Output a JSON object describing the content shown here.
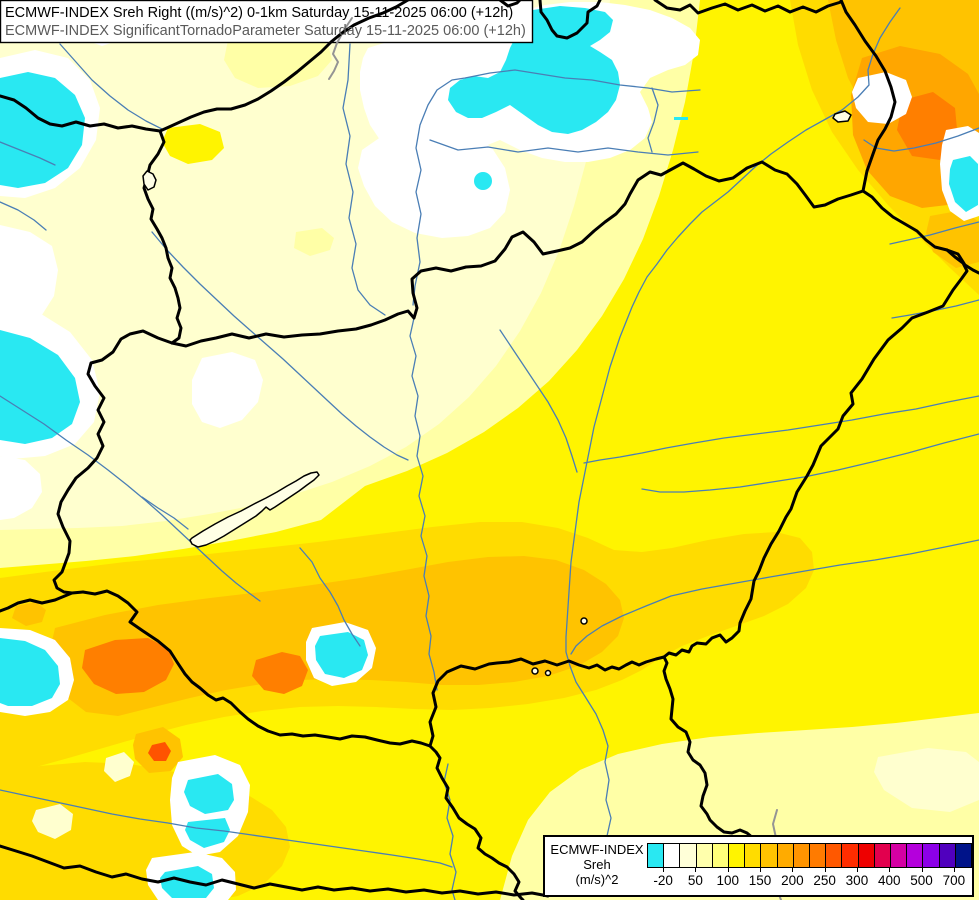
{
  "title_panel": {
    "line1": "ECMWF-INDEX Sreh Right ((m/s)^2) 0-1km Saturday 15-11-2025 06:00 (+12h)",
    "line2": "ECMWF-INDEX SignificantTornadoParameter Saturday 15-11-2025 06:00 (+12h)"
  },
  "legend": {
    "source_label": "ECMWF-INDEX",
    "parameter_label": "Sreh",
    "units_label": "(m/s)^2",
    "tick_labels": [
      "-20",
      "50",
      "100",
      "150",
      "200",
      "250",
      "300",
      "400",
      "500",
      "700"
    ],
    "swatch_colors": [
      "#29E8F2",
      "#FFFFFF",
      "#FFFFD8",
      "#FFFFAC",
      "#FFFF7A",
      "#FFF400",
      "#FFDC00",
      "#FFC300",
      "#FFAB00",
      "#FF9400",
      "#FF7B00",
      "#FF5800",
      "#FF2D00",
      "#EE0000",
      "#E2004E",
      "#D400A3",
      "#B400DC",
      "#8C00E8",
      "#5000BE",
      "#001389"
    ]
  },
  "map": {
    "kind": "filled-contour weather map",
    "visible_features": [
      "country borders",
      "rivers",
      "lakes",
      "gray parameter contours"
    ],
    "fill_palette": {
      "negative_cyan": "#29E8F2",
      "near_zero_white": "#FFFFFF",
      "background_cream": "#FFFFCF",
      "pale_yellow": "#FFFFA6",
      "yellow": "#FFF400",
      "gold": "#FFDC00",
      "amber": "#FFC300",
      "orange": "#FFA600",
      "deep_orange": "#FF7F00",
      "red_orange_core": "#FF5300"
    },
    "line_colors": {
      "country_border": "#000000",
      "river": "#4A7EB5",
      "stp_contour": "#949494",
      "lake_outline": "#000000"
    }
  }
}
